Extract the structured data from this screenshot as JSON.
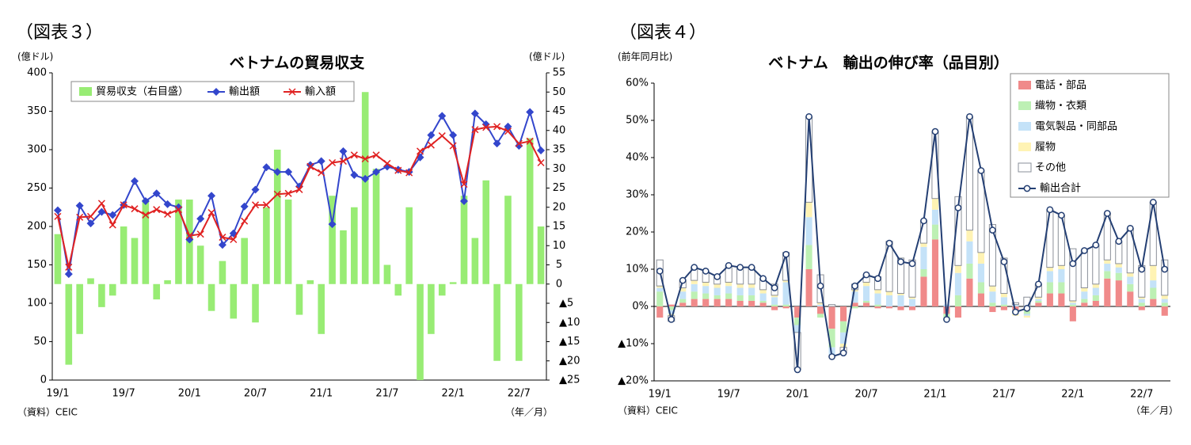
{
  "chart_data": [
    {
      "type": "combo",
      "figure_label": "（図表３）",
      "title": "ベトナムの貿易収支",
      "y_unit": "(億ドル)",
      "y2_unit": "(億ドル)",
      "source": "（資料）CEIC",
      "x_unit": "（年／月）",
      "legend": "top-left",
      "categories": [
        "19/1",
        null,
        null,
        null,
        null,
        null,
        "19/7",
        null,
        null,
        null,
        null,
        null,
        "20/1",
        null,
        null,
        null,
        null,
        null,
        "20/7",
        null,
        null,
        null,
        null,
        null,
        "21/1",
        null,
        null,
        null,
        null,
        null,
        "21/7",
        null,
        null,
        null,
        null,
        null,
        "22/1",
        null,
        null,
        null,
        null,
        null,
        "22/7",
        null,
        null
      ],
      "ylim": [
        0,
        400
      ],
      "yticks": [
        0,
        50,
        100,
        150,
        200,
        250,
        300,
        350,
        400
      ],
      "y2lim": [
        -25,
        55
      ],
      "y2ticks": [
        {
          "value": -25,
          "label": "▲25"
        },
        {
          "value": -20,
          "label": "▲20"
        },
        {
          "value": -15,
          "label": "▲15"
        },
        {
          "value": -10,
          "label": "▲10"
        },
        {
          "value": -5,
          "label": "▲5"
        },
        0,
        5,
        10,
        15,
        20,
        25,
        30,
        35,
        40,
        45,
        50,
        55
      ],
      "series": [
        {
          "name": "貿易収支（右目盛）",
          "type": "bar",
          "axis": "y2",
          "color": "#98ec74",
          "values": [
            13,
            -21,
            -13,
            1.5,
            -6,
            -3,
            15,
            12,
            22,
            -4,
            1,
            22,
            22,
            10,
            -7,
            6,
            -9,
            12,
            -10,
            20,
            35,
            22,
            -8,
            1,
            -13,
            23,
            14,
            20,
            50,
            30,
            5,
            -3,
            20,
            -25,
            -13,
            -3,
            0.5,
            23,
            12,
            27,
            -20,
            23,
            -20,
            38,
            15
          ]
        },
        {
          "name": "輸出額",
          "type": "line",
          "marker": "diamond",
          "color": "#3346cc",
          "values": [
            221,
            138,
            227,
            204,
            219,
            215,
            228,
            259,
            233,
            243,
            229,
            225,
            183,
            210,
            240,
            176,
            191,
            226,
            248,
            277,
            271,
            271,
            252,
            280,
            285,
            203,
            298,
            267,
            262,
            271,
            278,
            274,
            271,
            290,
            319,
            344,
            319,
            233,
            347,
            333,
            308,
            330,
            305,
            349,
            299
          ]
        },
        {
          "name": "輸入額",
          "type": "line",
          "marker": "x",
          "color": "#e02222",
          "values": [
            213,
            147,
            212,
            213,
            230,
            202,
            228,
            223,
            215,
            222,
            216,
            222,
            188,
            190,
            218,
            186,
            183,
            207,
            228,
            228,
            242,
            243,
            248,
            278,
            270,
            283,
            285,
            293,
            288,
            293,
            282,
            273,
            270,
            298,
            306,
            318,
            305,
            255,
            326,
            329,
            330,
            324,
            308,
            311,
            283
          ]
        }
      ]
    },
    {
      "type": "bar",
      "stacked": true,
      "figure_label": "（図表４）",
      "title": "ベトナム　輸出の伸び率（品目別）",
      "y_unit": "(前年同月比)",
      "source": "（資料）CEIC",
      "x_unit": "（年／月）",
      "legend": "top-right",
      "categories": [
        "19/1",
        null,
        null,
        null,
        null,
        null,
        "19/7",
        null,
        null,
        null,
        null,
        null,
        "20/1",
        null,
        null,
        null,
        null,
        null,
        "20/7",
        null,
        null,
        null,
        null,
        null,
        "21/1",
        null,
        null,
        null,
        null,
        null,
        "21/7",
        null,
        null,
        null,
        null,
        null,
        "22/1",
        null,
        null,
        null,
        null,
        null,
        "22/7",
        null,
        null
      ],
      "ylim": [
        -20,
        60
      ],
      "yticks": [
        {
          "value": -20,
          "label": "▲20%"
        },
        {
          "value": -10,
          "label": "▲10%"
        },
        {
          "value": 0,
          "label": "0%"
        },
        {
          "value": 10,
          "label": "10%"
        },
        {
          "value": 20,
          "label": "20%"
        },
        {
          "value": 30,
          "label": "30%"
        },
        {
          "value": 40,
          "label": "40%"
        },
        {
          "value": 50,
          "label": "50%"
        },
        {
          "value": 60,
          "label": "60%"
        }
      ],
      "series": [
        {
          "name": "電話・部品",
          "type": "bar",
          "color": "#f08a8a",
          "values": [
            -3,
            0.5,
            1,
            2,
            2,
            2,
            2,
            1.5,
            1.5,
            1,
            -1,
            -0.5,
            -3,
            10,
            -2,
            -6,
            -4,
            1,
            1,
            -0.5,
            -0.5,
            -1,
            -1,
            8,
            18,
            -2,
            -3,
            7.5,
            3.5,
            -1.5,
            -1,
            -1,
            -1,
            1,
            3.5,
            3.5,
            -4,
            1,
            1.5,
            7.5,
            7,
            4,
            -1,
            2,
            -2.5
          ]
        },
        {
          "name": "織物・衣類",
          "type": "bar",
          "color": "#bdf0b4",
          "values": [
            4,
            -1,
            1,
            2,
            1.5,
            1,
            1.5,
            1.5,
            1.5,
            0.5,
            0.5,
            0.5,
            -2,
            6.5,
            -1,
            -5,
            -3,
            -0.5,
            0.5,
            0.5,
            0,
            0,
            0,
            2,
            4,
            -1.5,
            3,
            4,
            3,
            1,
            0.5,
            -1,
            -1,
            0.5,
            3,
            3,
            0.5,
            1,
            1.5,
            2,
            2,
            2,
            1,
            3,
            1
          ]
        },
        {
          "name": "電気製品・同部品",
          "type": "bar",
          "color": "#c4e2f8",
          "values": [
            1,
            -1,
            2,
            2,
            2,
            2,
            2,
            2,
            2,
            2,
            2,
            6,
            -2,
            7.5,
            0.5,
            -2,
            -3,
            3,
            4,
            3,
            3,
            3,
            2,
            6,
            4,
            0.5,
            6,
            6,
            5,
            3,
            2,
            0.5,
            -0.5,
            0.5,
            3,
            3.5,
            0.5,
            2,
            2,
            2,
            1.5,
            2,
            1,
            2,
            1
          ]
        },
        {
          "name": "履物",
          "type": "bar",
          "color": "#fff3b4",
          "values": [
            0.5,
            -0.5,
            1,
            1,
            1,
            1,
            1,
            1,
            1,
            1,
            0.5,
            0.5,
            0,
            4,
            0.5,
            -1,
            -1,
            0.5,
            1,
            1,
            1,
            0.5,
            0.5,
            1,
            3,
            -0.5,
            2,
            3,
            3,
            1.5,
            1,
            -0.5,
            -0.5,
            0.5,
            1,
            1,
            0.5,
            1,
            1,
            1,
            1,
            1,
            0.5,
            4,
            1
          ]
        },
        {
          "name": "その他",
          "type": "bar",
          "color": "#ffffff",
          "outline": "#8a8f98",
          "values": [
            7,
            -1.5,
            2,
            3.5,
            3,
            2,
            4.5,
            4.5,
            4.5,
            3,
            3,
            7.5,
            -10,
            23,
            7.5,
            0.5,
            -1.5,
            1.5,
            2,
            3.5,
            13.5,
            9.5,
            10,
            6,
            18,
            0,
            18.5,
            30.5,
            22,
            16.5,
            9.5,
            0.5,
            2.5,
            3.5,
            15.5,
            13.5,
            14,
            10,
            10.5,
            12.5,
            6,
            12,
            8.5,
            17,
            9.5
          ]
        },
        {
          "name": "輸出合計",
          "type": "line",
          "marker": "circle",
          "color": "#243f73",
          "values": [
            9.5,
            -3.5,
            7,
            10.5,
            9.5,
            8,
            11,
            10.5,
            10.5,
            7.5,
            5,
            14,
            -17,
            51,
            5.5,
            -13.5,
            -12.5,
            5.5,
            8.5,
            7.5,
            17,
            12,
            11.5,
            23,
            47,
            -3.5,
            26.5,
            51,
            36.5,
            20.5,
            12,
            -1.5,
            -0.5,
            6,
            26,
            24.5,
            11.5,
            15,
            16.5,
            25,
            17.5,
            21,
            10,
            28,
            10
          ]
        }
      ]
    }
  ]
}
